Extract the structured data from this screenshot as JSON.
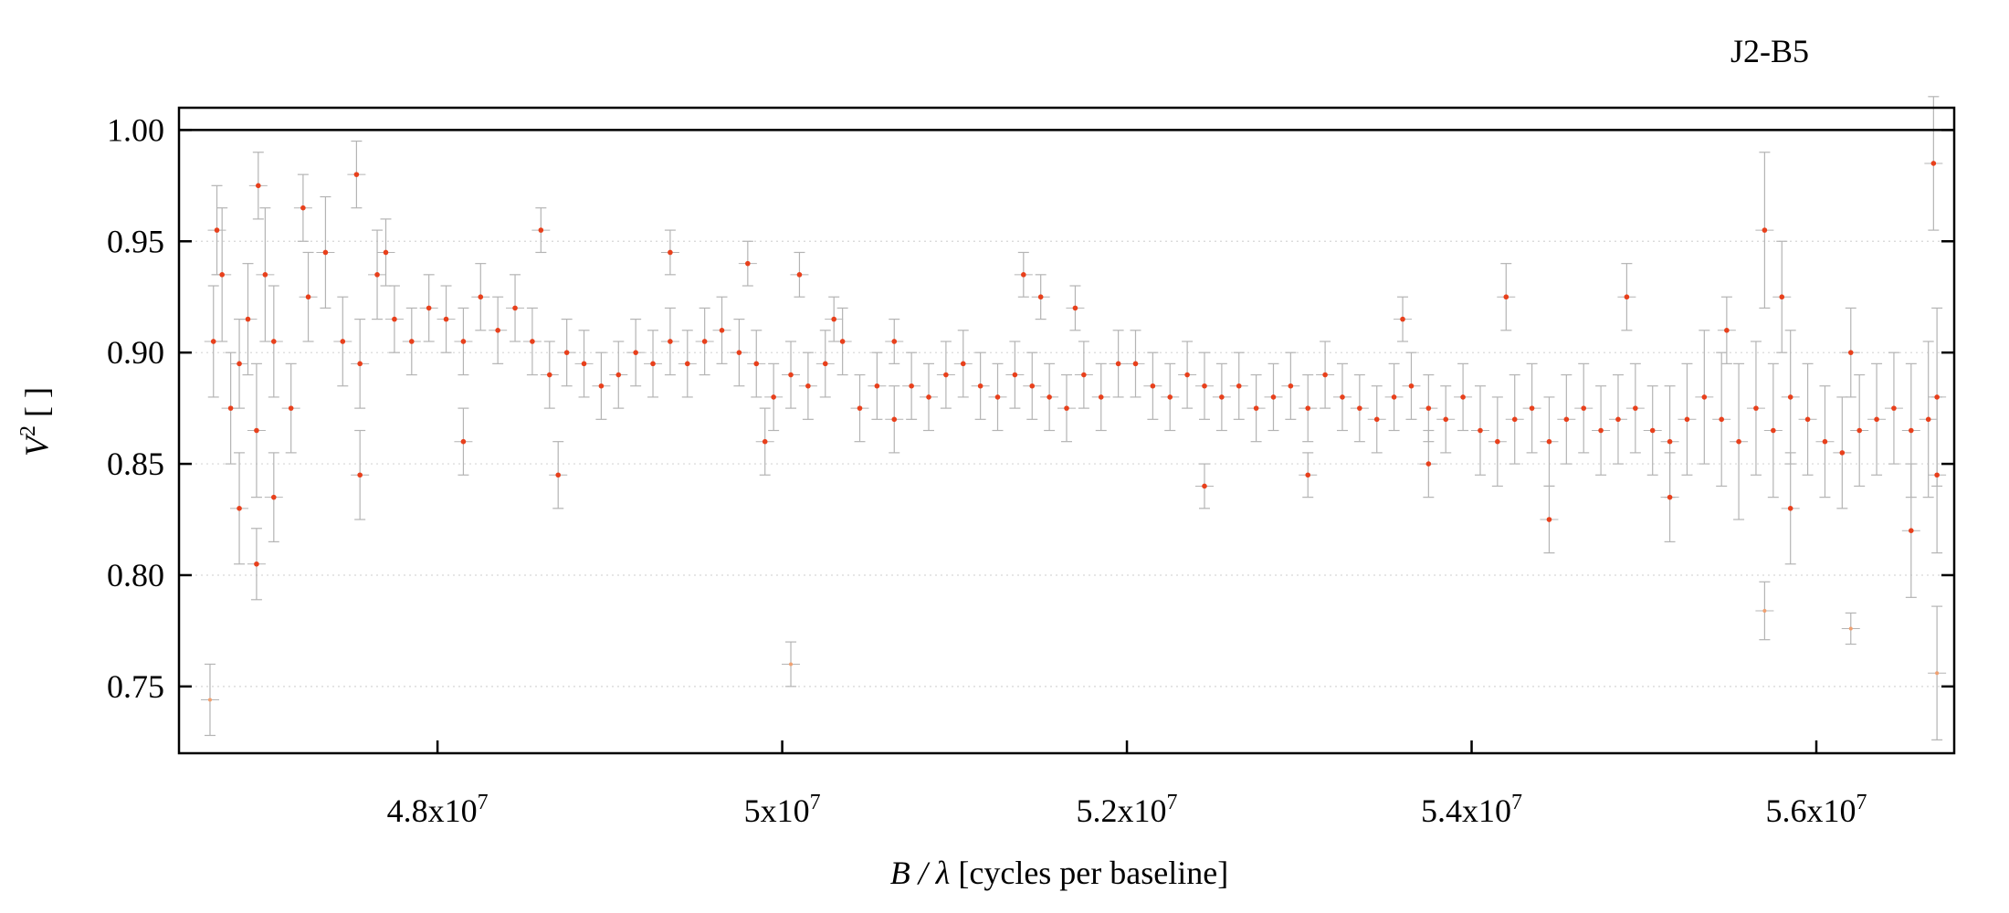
{
  "chart_data": {
    "type": "scatter",
    "title": "J2-B5",
    "xlabel": {
      "var": "B / λ",
      "rest": " [cycles per baseline]"
    },
    "ylabel": {
      "var": "V",
      "sup": "2",
      "rest": " [ ]"
    },
    "xlim": [
      46500000,
      56800000
    ],
    "ylim": [
      0.72,
      1.01
    ],
    "x_ticks": [
      {
        "value": 48000000,
        "mant": "4.8x10",
        "exp": "7"
      },
      {
        "value": 50000000,
        "mant": "5x10",
        "exp": "7"
      },
      {
        "value": 52000000,
        "mant": "5.2x10",
        "exp": "7"
      },
      {
        "value": 54000000,
        "mant": "5.4x10",
        "exp": "7"
      },
      {
        "value": 56000000,
        "mant": "5.6x10",
        "exp": "7"
      }
    ],
    "y_ticks": [
      {
        "value": 0.75,
        "label": "0.75"
      },
      {
        "value": 0.8,
        "label": "0.80"
      },
      {
        "value": 0.85,
        "label": "0.85"
      },
      {
        "value": 0.9,
        "label": "0.90"
      },
      {
        "value": 0.95,
        "label": "0.95"
      },
      {
        "value": 1.0,
        "label": "1.00"
      }
    ],
    "reference_line_y": 1.0,
    "grid": "horizontal dotted",
    "colors": {
      "point": "#e8401c",
      "low_point": "#f0a070",
      "errorbar": "#b4b4b4"
    },
    "series": [
      {
        "x": [
          46700000,
          46750000,
          46800000,
          46850000,
          46900000,
          46950000,
          47000000,
          47050000,
          47150000,
          47250000,
          47350000,
          47450000,
          47550000,
          47650000,
          47750000,
          47850000,
          47950000,
          48050000,
          48150000,
          48250000,
          48350000,
          48450000,
          48550000,
          48650000,
          48750000,
          48850000,
          48950000,
          49050000,
          49150000,
          49250000,
          49350000,
          49450000,
          49550000,
          49650000,
          49750000,
          49850000,
          49950000,
          50050000,
          50150000,
          50250000,
          50350000,
          50450000,
          50550000,
          50650000,
          50750000,
          50850000,
          50950000,
          51050000,
          51150000,
          51250000,
          51350000,
          51450000,
          51550000,
          51650000,
          51750000,
          51850000,
          51950000,
          52050000,
          52150000,
          52250000,
          52350000,
          52450000,
          52550000,
          52650000,
          52750000,
          52850000,
          52950000,
          53050000,
          53150000,
          53250000,
          53350000,
          53450000,
          53550000,
          53650000,
          53750000,
          53850000,
          53950000,
          54050000,
          54150000,
          54250000,
          54350000,
          54450000,
          54550000,
          54650000,
          54750000,
          54850000,
          54950000,
          55050000,
          55150000,
          55250000,
          55350000,
          55450000,
          55550000,
          55650000,
          55750000,
          55850000,
          55950000,
          56050000,
          56150000,
          56250000,
          56350000,
          56450000,
          56550000,
          56650000,
          56700000,
          46720000,
          46960000,
          47220000,
          47530000,
          47700000,
          48600000,
          49350000,
          49800000,
          50100000,
          50300000,
          50650000,
          51400000,
          51500000,
          51700000,
          53600000,
          54200000,
          54900000,
          55480000,
          55700000,
          55800000,
          56200000,
          56680000,
          46850000,
          47550000,
          47050000,
          48150000,
          48700000,
          49900000,
          52450000,
          53050000,
          53750000,
          54450000,
          55150000,
          55850000,
          56550000,
          56700000,
          46680000,
          50050000,
          55700000,
          56200000,
          56700000,
          46950000
        ],
        "y": [
          0.905,
          0.935,
          0.875,
          0.895,
          0.915,
          0.865,
          0.935,
          0.905,
          0.875,
          0.925,
          0.945,
          0.905,
          0.895,
          0.935,
          0.915,
          0.905,
          0.92,
          0.915,
          0.905,
          0.925,
          0.91,
          0.92,
          0.905,
          0.89,
          0.9,
          0.895,
          0.885,
          0.89,
          0.9,
          0.895,
          0.905,
          0.895,
          0.905,
          0.91,
          0.9,
          0.895,
          0.88,
          0.89,
          0.885,
          0.895,
          0.905,
          0.875,
          0.885,
          0.87,
          0.885,
          0.88,
          0.89,
          0.895,
          0.885,
          0.88,
          0.89,
          0.885,
          0.88,
          0.875,
          0.89,
          0.88,
          0.895,
          0.895,
          0.885,
          0.88,
          0.89,
          0.885,
          0.88,
          0.885,
          0.875,
          0.88,
          0.885,
          0.875,
          0.89,
          0.88,
          0.875,
          0.87,
          0.88,
          0.885,
          0.875,
          0.87,
          0.88,
          0.865,
          0.86,
          0.87,
          0.875,
          0.86,
          0.87,
          0.875,
          0.865,
          0.87,
          0.875,
          0.865,
          0.86,
          0.87,
          0.88,
          0.87,
          0.86,
          0.875,
          0.865,
          0.88,
          0.87,
          0.86,
          0.855,
          0.865,
          0.87,
          0.875,
          0.865,
          0.87,
          0.88,
          0.955,
          0.975,
          0.965,
          0.98,
          0.945,
          0.955,
          0.945,
          0.94,
          0.935,
          0.915,
          0.905,
          0.935,
          0.925,
          0.92,
          0.915,
          0.925,
          0.925,
          0.91,
          0.955,
          0.925,
          0.9,
          0.985,
          0.83,
          0.845,
          0.835,
          0.86,
          0.845,
          0.86,
          0.84,
          0.845,
          0.85,
          0.825,
          0.835,
          0.83,
          0.82,
          0.845,
          0.744,
          0.76,
          0.784,
          0.776,
          0.756,
          0.805
        ],
        "yerr": [
          0.025,
          0.03,
          0.025,
          0.02,
          0.025,
          0.03,
          0.03,
          0.025,
          0.02,
          0.02,
          0.025,
          0.02,
          0.02,
          0.02,
          0.015,
          0.015,
          0.015,
          0.015,
          0.015,
          0.015,
          0.015,
          0.015,
          0.015,
          0.015,
          0.015,
          0.015,
          0.015,
          0.015,
          0.015,
          0.015,
          0.015,
          0.015,
          0.015,
          0.015,
          0.015,
          0.015,
          0.015,
          0.015,
          0.015,
          0.015,
          0.015,
          0.015,
          0.015,
          0.015,
          0.015,
          0.015,
          0.015,
          0.015,
          0.015,
          0.015,
          0.015,
          0.015,
          0.015,
          0.015,
          0.015,
          0.015,
          0.015,
          0.015,
          0.015,
          0.015,
          0.015,
          0.015,
          0.015,
          0.015,
          0.015,
          0.015,
          0.015,
          0.015,
          0.015,
          0.015,
          0.015,
          0.015,
          0.015,
          0.015,
          0.015,
          0.015,
          0.015,
          0.02,
          0.02,
          0.02,
          0.02,
          0.02,
          0.02,
          0.02,
          0.02,
          0.02,
          0.02,
          0.02,
          0.025,
          0.025,
          0.03,
          0.03,
          0.035,
          0.03,
          0.03,
          0.03,
          0.025,
          0.025,
          0.025,
          0.025,
          0.025,
          0.025,
          0.03,
          0.035,
          0.04,
          0.02,
          0.015,
          0.015,
          0.015,
          0.015,
          0.01,
          0.01,
          0.01,
          0.01,
          0.01,
          0.01,
          0.01,
          0.01,
          0.01,
          0.01,
          0.015,
          0.015,
          0.015,
          0.035,
          0.025,
          0.02,
          0.03,
          0.025,
          0.02,
          0.02,
          0.015,
          0.015,
          0.015,
          0.01,
          0.01,
          0.015,
          0.015,
          0.02,
          0.025,
          0.03,
          0.035,
          0.016,
          0.01,
          0.013,
          0.007,
          0.03,
          0.016
        ]
      }
    ]
  }
}
